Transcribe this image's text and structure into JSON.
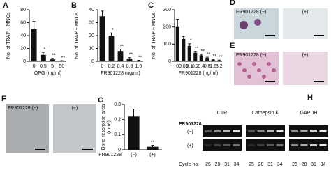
{
  "chart_data": [
    {
      "type": "bar",
      "panel_label": "A",
      "y_label": "No. of TRAP + MNCs",
      "x_label": "OPG (ng/ml)",
      "categories": [
        "0",
        "0.5",
        "5",
        "50"
      ],
      "values": [
        50,
        10,
        3,
        0.5
      ],
      "errors": [
        12,
        4,
        1.5,
        0.5
      ],
      "annotations": [
        null,
        "*",
        "**",
        "**"
      ],
      "color": "#111111",
      "ylim": [
        0,
        80
      ],
      "yticks": [
        0,
        20,
        40,
        60,
        80
      ]
    },
    {
      "type": "bar",
      "panel_label": "B",
      "y_label": "No. of TRAP + MNCs",
      "x_label": "FR901228 (ng/ml)",
      "categories": [
        "0",
        "0.2",
        "0.4",
        "0.8",
        "1.6"
      ],
      "values": [
        35,
        20,
        8,
        2,
        0.5
      ],
      "errors": [
        4,
        2,
        1.5,
        0.8,
        0.3
      ],
      "annotations": [
        null,
        "*",
        "**",
        "**",
        "**"
      ],
      "color": "#111111",
      "ylim": [
        0,
        40
      ],
      "yticks": [
        0,
        10,
        20,
        30,
        40
      ]
    },
    {
      "type": "bar",
      "panel_label": "C",
      "y_label": "No. of TRAP + MNCs",
      "x_label": "FR901228 (ng/ml)",
      "categories": [
        "0",
        "0.05",
        "0.1",
        "0.2",
        "0.4",
        "0.8",
        "1.6",
        "3.2"
      ],
      "values": [
        200,
        130,
        90,
        50,
        35,
        20,
        10,
        5
      ],
      "errors": [
        45,
        15,
        12,
        8,
        6,
        4,
        3,
        2
      ],
      "annotations": [
        null,
        null,
        "*",
        "**",
        "**",
        "**",
        "**",
        "**"
      ],
      "color": "#111111",
      "ylim": [
        0,
        300
      ],
      "yticks": [
        0,
        100,
        200,
        300
      ]
    },
    {
      "type": "bar",
      "panel_label": "G",
      "y_label": "Bone resorption area",
      "y_unit": "(mm²)",
      "x_label": "FR901228",
      "categories": [
        "(−)",
        "(+)"
      ],
      "values": [
        0.22,
        0.02
      ],
      "errors": [
        0.05,
        0.01
      ],
      "annotations": [
        null,
        "**"
      ],
      "color": "#111111",
      "ylim": [
        0,
        0.3
      ],
      "yticks": [
        0,
        0.1,
        0.2,
        0.3
      ]
    }
  ],
  "images": [
    {
      "panel_label": "D",
      "left": "FR901228 (−)",
      "right": "(+)"
    },
    {
      "panel_label": "E",
      "left": "FR901228 (−)",
      "right": "(+)"
    },
    {
      "panel_label": "F",
      "left": "FR901228 (−)",
      "right": "(+)"
    }
  ],
  "gel": {
    "panel_label": "H",
    "genes": [
      "CTR",
      "Cathepsin K",
      "GAPDH"
    ],
    "treatment": "FR901228",
    "rows": [
      "(−)",
      "(+)"
    ],
    "cycle_label": "Cycle no.",
    "cycles": [
      "25",
      "28",
      "31",
      "34"
    ]
  }
}
